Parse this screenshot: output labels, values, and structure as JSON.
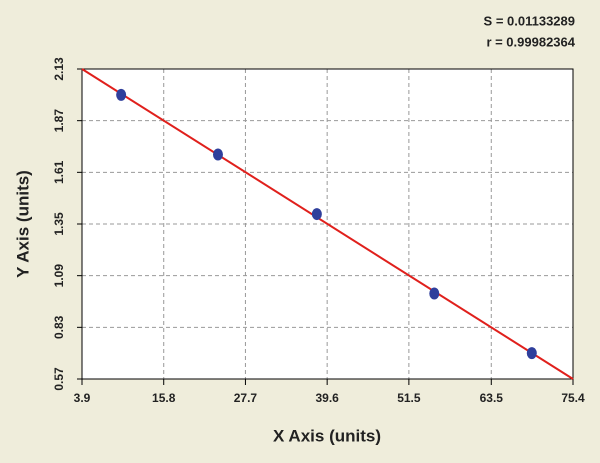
{
  "chart_data": {
    "type": "scatter",
    "annotations": [
      "S = 0.01133289",
      "r = 0.99982364"
    ],
    "x_label": "X Axis (units)",
    "y_label": "Y Axis (units)",
    "series": [
      {
        "mode": "markers",
        "color": "#2f3f9c",
        "x": [
          9.6,
          23.7,
          38.1,
          55.2,
          69.4
        ],
        "values": [
          2.0,
          1.7,
          1.4,
          1.0,
          0.7
        ]
      },
      {
        "mode": "line",
        "color": "#e0201c",
        "x": [
          3.9,
          75.4
        ],
        "values": [
          2.13,
          0.57
        ]
      }
    ],
    "xlim": [
      3.9,
      75.4
    ],
    "xticks": [
      3.9,
      15.8,
      27.7,
      39.6,
      51.5,
      63.5,
      75.4
    ],
    "ylim": [
      0.57,
      2.13
    ],
    "yticks": [
      0.57,
      0.83,
      1.09,
      1.35,
      1.61,
      1.87,
      2.13
    ],
    "grid": true
  }
}
